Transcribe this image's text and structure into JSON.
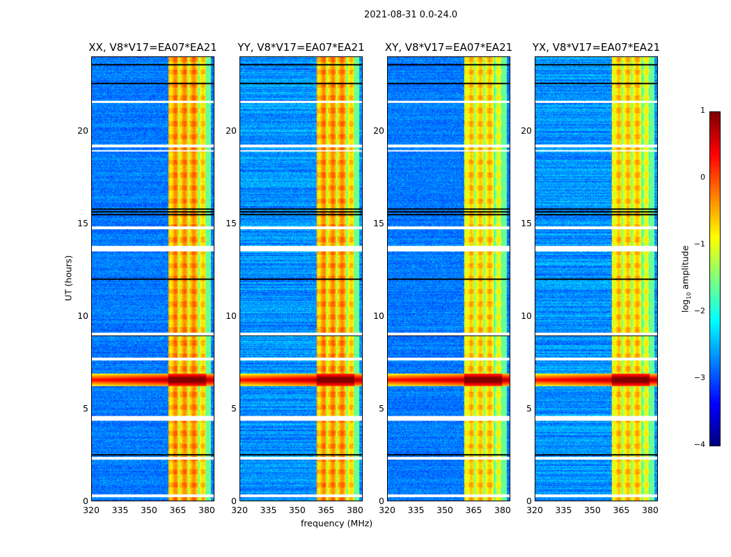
{
  "chart_data": {
    "type": "heatmap",
    "title": "2021-08-31 0.0-24.0",
    "xlabel": "frequency (MHz)",
    "ylabel": "UT (hours)",
    "xlim": [
      320,
      384
    ],
    "ylim": [
      0,
      24
    ],
    "xticks": [
      320,
      335,
      350,
      365,
      380
    ],
    "yticks": [
      0,
      5,
      10,
      15,
      20
    ],
    "panels": [
      {
        "title": "XX, V8*V17=EA07*EA21"
      },
      {
        "title": "YY, V8*V17=EA07*EA21"
      },
      {
        "title": "XY, V8*V17=EA07*EA21"
      },
      {
        "title": "YX, V8*V17=EA07*EA21"
      }
    ],
    "colorbar": {
      "label": "log10 amplitude",
      "label_main": "log",
      "label_sub": "10",
      "label_rest": " amplitude",
      "range": [
        -4,
        1
      ],
      "ticks": [
        1,
        0,
        -1,
        -2,
        -3,
        -4
      ],
      "colormap": "jet"
    },
    "rfi_band_mhz": [
      360,
      380
    ],
    "flagged_hours": [
      [
        0.2,
        0.35
      ],
      [
        2.25,
        2.4
      ],
      [
        4.35,
        4.6
      ],
      [
        7.6,
        7.75
      ],
      [
        8.95,
        9.1
      ],
      [
        13.5,
        13.8
      ],
      [
        14.7,
        14.85
      ],
      [
        18.9,
        19.0
      ],
      [
        19.15,
        19.3
      ],
      [
        21.55,
        21.65
      ]
    ],
    "black_rows_hours": [
      2.5,
      7.7,
      8.95,
      12.0,
      15.5,
      15.65,
      15.8,
      22.6,
      23.6
    ],
    "burst_hours": [
      6.2,
      6.9
    ]
  }
}
